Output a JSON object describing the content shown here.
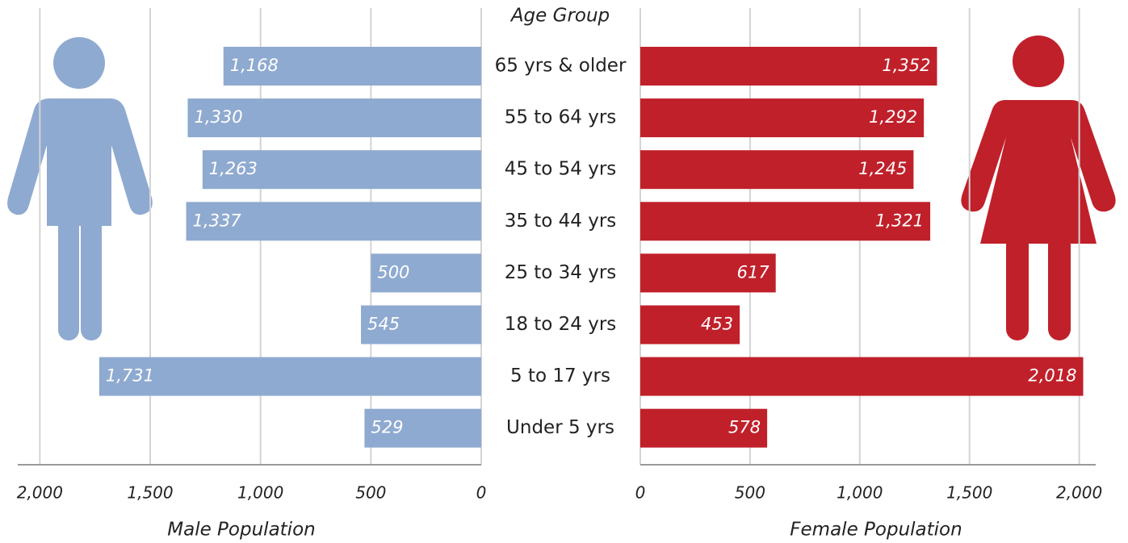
{
  "chart_data": {
    "type": "pyramid",
    "ylabel": "Age Group",
    "categories": [
      "65 yrs & older",
      "55 to 64 yrs",
      "45 to 54 yrs",
      "35 to 44 yrs",
      "25 to 34 yrs",
      "18 to 24 yrs",
      "5 to 17 yrs",
      "Under 5 yrs"
    ],
    "grid": true,
    "series": [
      {
        "name": "Male Population",
        "color": "#8faad0",
        "side": "left",
        "values": [
          1168,
          1330,
          1263,
          1337,
          500,
          545,
          1731,
          529
        ],
        "value_labels": [
          "1,168",
          "1,330",
          "1,263",
          "1,337",
          "500",
          "545",
          "1,731",
          "529"
        ],
        "xlim": [
          0,
          2100
        ],
        "xticks": [
          0,
          500,
          {
            "value": 1000,
            "label": "1,000"
          },
          {
            "value": 1500,
            "label": "1,500"
          },
          {
            "value": 2000,
            "label": "2,000"
          }
        ]
      },
      {
        "name": "Female Population",
        "color": "#c0202a",
        "side": "right",
        "values": [
          1352,
          1292,
          1245,
          1321,
          617,
          453,
          2018,
          578
        ],
        "value_labels": [
          "1,352",
          "1,292",
          "1,245",
          "1,321",
          "617",
          "453",
          "2,018",
          "578"
        ],
        "xlim": [
          0,
          2075
        ],
        "xticks": [
          0,
          500,
          {
            "value": 1000,
            "label": "1,000"
          },
          {
            "value": 1500,
            "label": "1,500"
          },
          {
            "value": 2000,
            "label": "2,000"
          }
        ]
      }
    ]
  }
}
